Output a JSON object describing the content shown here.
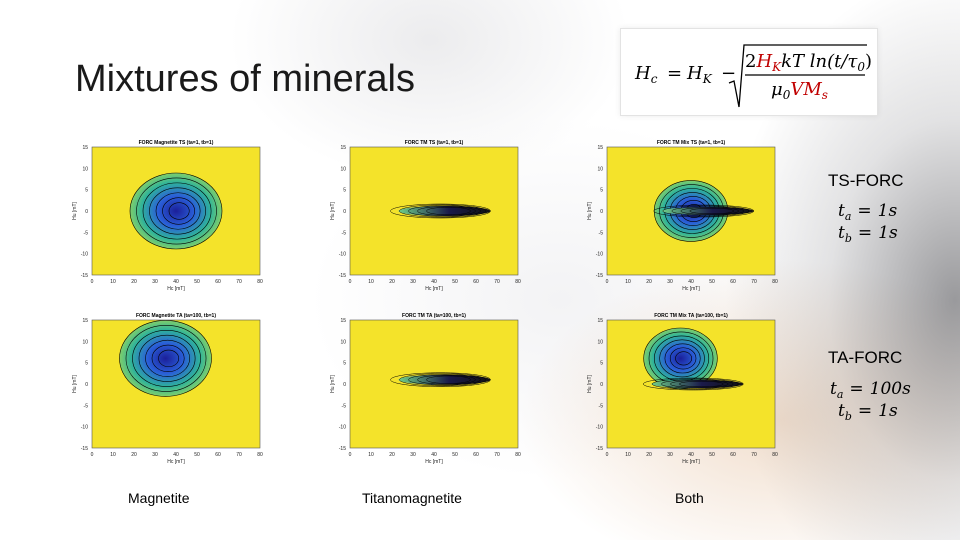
{
  "slide": {
    "title": "Mixtures of minerals",
    "formula": {
      "lhs": "H",
      "lhs_sub": "c",
      "eq": "=",
      "hk": "H",
      "hk_sub": "K",
      "minus": "−",
      "num_coef": "2",
      "num_hk": "H",
      "num_hk_sub": "K",
      "num_rest": "kT ln(t/τ",
      "num_tau_sub": "0",
      "num_close": ")",
      "den_mu": "μ",
      "den_mu_sub": "0",
      "den_vm": "VM",
      "den_vm_sub": "s"
    }
  },
  "labels": {
    "ts_forc": "TS-FORC",
    "ta_forc": "TA-FORC",
    "columns": [
      "Magnetite",
      "Titanomagnetite",
      "Both"
    ]
  },
  "params": {
    "ts": [
      {
        "var": "t",
        "sub": "a",
        "eq": "=",
        "val": "1s"
      },
      {
        "var": "t",
        "sub": "b",
        "eq": "=",
        "val": "1s"
      }
    ],
    "ta": [
      {
        "var": "t",
        "sub": "a",
        "eq": "=",
        "val": "100s"
      },
      {
        "var": "t",
        "sub": "b",
        "eq": "=",
        "val": "1s"
      }
    ]
  },
  "colors": {
    "plot_background": "#f4e32a",
    "contour_line": "#000000",
    "core_blue": "#2a5fd8",
    "mid_green": "#2fb39a",
    "param_red": "#c00000"
  },
  "chart_data": [
    {
      "type": "heatmap",
      "title": "FORC Magnetite TS (ta=1, tb=1)",
      "xlabel": "Hc [mT]",
      "ylabel": "Hu [mT]",
      "xlim": [
        0,
        80
      ],
      "ylim": [
        -15,
        15
      ],
      "xticks": [
        "0",
        "10",
        "20",
        "30",
        "40",
        "50",
        "60",
        "70",
        "80"
      ],
      "yticks": [
        "15",
        "10",
        "5",
        "0",
        "-5",
        "-10",
        "-15"
      ],
      "peak": {
        "x": 40,
        "y": 0
      },
      "shape": "broad-oval"
    },
    {
      "type": "heatmap",
      "title": "FORC TM  TS (ta=1, tb=1)",
      "xlabel": "Hc [mT]",
      "ylabel": "Hu [mT]",
      "xlim": [
        0,
        80
      ],
      "ylim": [
        -15,
        15
      ],
      "xticks": [
        "0",
        "10",
        "20",
        "30",
        "40",
        "50",
        "60",
        "70",
        "80"
      ],
      "yticks": [
        "15",
        "10",
        "5",
        "0",
        "-5",
        "-10",
        "-15"
      ],
      "peak": {
        "x": 45,
        "y": 0
      },
      "shape": "thin-ridge"
    },
    {
      "type": "heatmap",
      "title": "FORC TM Mix  TS (ta=1, tb=1)",
      "xlabel": "Hc [mT]",
      "ylabel": "Hu [mT]",
      "xlim": [
        0,
        80
      ],
      "ylim": [
        -15,
        15
      ],
      "xticks": [
        "0",
        "10",
        "20",
        "30",
        "40",
        "50",
        "60",
        "70",
        "80"
      ],
      "yticks": [
        "15",
        "10",
        "5",
        "0",
        "-5",
        "-10",
        "-15"
      ],
      "peak": {
        "x": 40,
        "y": 0
      },
      "shape": "oval-with-ridge"
    },
    {
      "type": "heatmap",
      "title": "FORC Magnetite TA (ta=100, tb=1)",
      "xlabel": "Hc [mT]",
      "ylabel": "Hu [mT]",
      "xlim": [
        0,
        80
      ],
      "ylim": [
        -15,
        15
      ],
      "xticks": [
        "0",
        "10",
        "20",
        "30",
        "40",
        "50",
        "60",
        "70",
        "80"
      ],
      "yticks": [
        "15",
        "10",
        "5",
        "0",
        "-5",
        "-10",
        "-15"
      ],
      "peak": {
        "x": 35,
        "y": 6
      },
      "shape": "broad-oval"
    },
    {
      "type": "heatmap",
      "title": "FORC TM  TA (ta=100, tb=1)",
      "xlabel": "Hc [mT]",
      "ylabel": "Hu [mT]",
      "xlim": [
        0,
        80
      ],
      "ylim": [
        -15,
        15
      ],
      "xticks": [
        "0",
        "10",
        "20",
        "30",
        "40",
        "50",
        "60",
        "70",
        "80"
      ],
      "yticks": [
        "15",
        "10",
        "5",
        "0",
        "-5",
        "-10",
        "-15"
      ],
      "peak": {
        "x": 45,
        "y": 1
      },
      "shape": "thin-ridge"
    },
    {
      "type": "heatmap",
      "title": "FORC TM Mix  TA (ta=100, tb=1)",
      "xlabel": "Hc [mT]",
      "ylabel": "Hu [mT]",
      "xlim": [
        0,
        80
      ],
      "ylim": [
        -15,
        15
      ],
      "xticks": [
        "0",
        "10",
        "20",
        "30",
        "40",
        "50",
        "60",
        "70",
        "80"
      ],
      "yticks": [
        "15",
        "10",
        "5",
        "0",
        "-5",
        "-10",
        "-15"
      ],
      "peak": {
        "x": 35,
        "y": 6
      },
      "shape": "oval-with-ridge"
    }
  ]
}
